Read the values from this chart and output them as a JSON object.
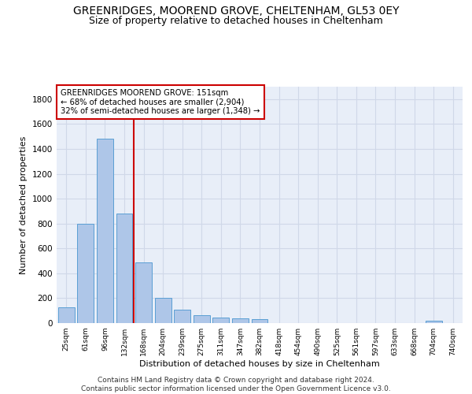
{
  "title1": "GREENRIDGES, MOOREND GROVE, CHELTENHAM, GL53 0EY",
  "title2": "Size of property relative to detached houses in Cheltenham",
  "xlabel": "Distribution of detached houses by size in Cheltenham",
  "ylabel": "Number of detached properties",
  "footnote": "Contains HM Land Registry data © Crown copyright and database right 2024.\nContains public sector information licensed under the Open Government Licence v3.0.",
  "bar_labels": [
    "25sqm",
    "61sqm",
    "96sqm",
    "132sqm",
    "168sqm",
    "204sqm",
    "239sqm",
    "275sqm",
    "311sqm",
    "347sqm",
    "382sqm",
    "418sqm",
    "454sqm",
    "490sqm",
    "525sqm",
    "561sqm",
    "597sqm",
    "633sqm",
    "668sqm",
    "704sqm",
    "740sqm"
  ],
  "bar_values": [
    125,
    800,
    1480,
    880,
    490,
    205,
    105,
    65,
    45,
    35,
    30,
    0,
    0,
    0,
    0,
    0,
    0,
    0,
    0,
    20,
    0
  ],
  "bar_color": "#aec6e8",
  "bar_edge_color": "#5a9fd4",
  "vline_x": 3.5,
  "vline_color": "#cc0000",
  "annotation_text": "GREENRIDGES MOOREND GROVE: 151sqm\n← 68% of detached houses are smaller (2,904)\n32% of semi-detached houses are larger (1,348) →",
  "annotation_box_color": "#cc0000",
  "ylim": [
    0,
    1900
  ],
  "yticks": [
    0,
    200,
    400,
    600,
    800,
    1000,
    1200,
    1400,
    1600,
    1800
  ],
  "grid_color": "#d0d8e8",
  "bg_color": "#e8eef8",
  "title1_fontsize": 10,
  "title2_fontsize": 9,
  "footnote_fontsize": 6.5
}
